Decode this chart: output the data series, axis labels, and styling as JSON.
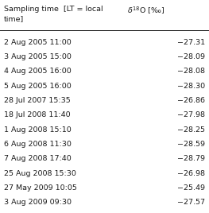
{
  "col1_header_line1": "Sampling time  [LT = local",
  "col1_header_line2": "time]",
  "rows": [
    [
      "2 Aug 2005 11:00",
      "−27.31"
    ],
    [
      "3 Aug 2005 15:00",
      "−28.09"
    ],
    [
      "4 Aug 2005 16:00",
      "−28.08"
    ],
    [
      "5 Aug 2005 16:00",
      "−28.30"
    ],
    [
      "28 Jul 2007 15:35",
      "−26.86"
    ],
    [
      "18 Jul 2008 11:40",
      "−27.98"
    ],
    [
      "1 Aug 2008 15:10",
      "−28.25"
    ],
    [
      "6 Aug 2008 11:30",
      "−28.59"
    ],
    [
      "7 Aug 2008 17:40",
      "−28.79"
    ],
    [
      "25 Aug 2008 15:30",
      "−26.98"
    ],
    [
      "27 May 2009 10:05",
      "−25.49"
    ],
    [
      "3 Aug 2009 09:30",
      "−27.57"
    ]
  ],
  "bg_color": "#ffffff",
  "text_color": "#1a1a1a",
  "font_size": 6.8,
  "header_font_size": 6.8
}
